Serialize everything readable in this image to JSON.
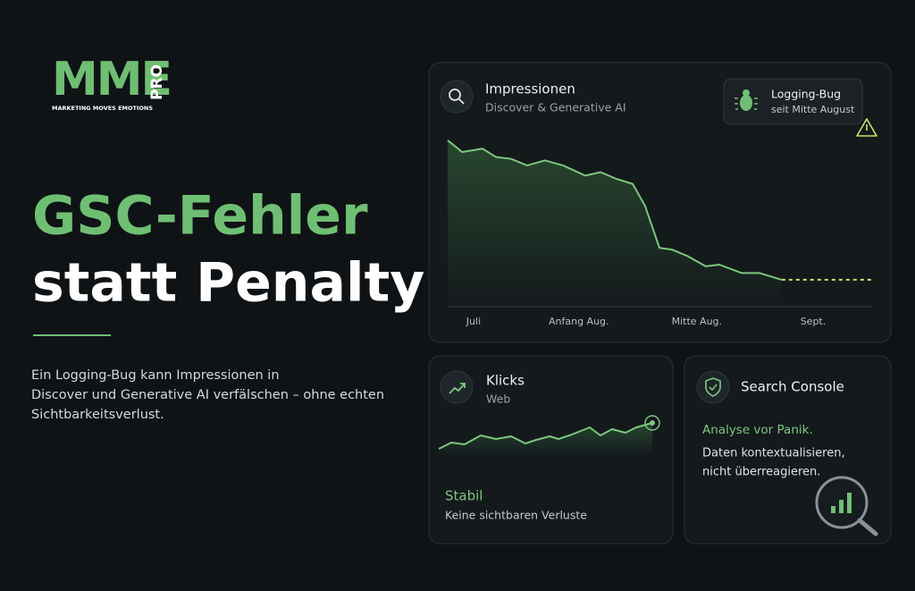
{
  "logo": {
    "mark": "MME",
    "pro": "PRO",
    "tagline": "MARKETING MOVES EMOTIONS"
  },
  "headline": {
    "line1": "GSC-Fehler",
    "line2": "statt Penalty"
  },
  "description_lines": [
    "Ein Logging-Bug kann Impressionen in",
    "Discover und Generative AI verfälschen – ohne echten",
    "Sichtbarkeitsverlust."
  ],
  "impressions_card": {
    "title": "Impressionen",
    "subtitle": "Discover & Generative AI",
    "badge": {
      "title": "Logging-Bug",
      "subtitle": "seit Mitte August"
    }
  },
  "clicks_card": {
    "title": "Klicks",
    "subtitle": "Web",
    "status": "Stabil",
    "note": "Keine sichtbaren Verluste"
  },
  "console_card": {
    "title": "Search Console",
    "highlight": "Analyse vor Panik.",
    "lines": [
      "Daten kontextualisieren,",
      "nicht überreagieren."
    ]
  },
  "chart_data": [
    {
      "type": "line",
      "xlim": [
        0,
        100
      ],
      "ylim": [
        0,
        100
      ],
      "xticks": [
        {
          "value": 6.1,
          "label": "Juli"
        },
        {
          "value": 30.9,
          "label": "Anfang Aug."
        },
        {
          "value": 58.7,
          "label": "Mitte Aug."
        },
        {
          "value": 86.1,
          "label": "Sept."
        }
      ],
      "series": [
        {
          "color": "#7bc77e",
          "x": [
            0,
            3.4,
            8.2,
            11.4,
            14.9,
            18.7,
            22.9,
            27.2,
            32.4,
            36,
            39.8,
            43.6,
            46.5,
            49.9,
            52.8,
            56.6,
            60.8,
            64,
            69.3,
            73.5,
            78.7
          ],
          "values": [
            99,
            92,
            94,
            89,
            88,
            84,
            87,
            84,
            78,
            80,
            76,
            73,
            60,
            35,
            34,
            30,
            24,
            25,
            20,
            20,
            16
          ]
        },
        {
          "color": "#c8e66a",
          "dashed": true,
          "x": [
            78.7,
            100
          ],
          "values": [
            16,
            16
          ]
        }
      ]
    },
    {
      "type": "line",
      "xlim": [
        0,
        100
      ],
      "ylim": [
        0,
        100
      ],
      "series": [
        {
          "color": "#7bc77e",
          "x": [
            0,
            5.9,
            12.1,
            19.7,
            26.8,
            33.9,
            40.6,
            45.6,
            51.9,
            56.1,
            62.3,
            70.7,
            75.7,
            81.2,
            87.4,
            92.5,
            100
          ],
          "values": [
            16,
            30,
            26,
            46,
            38,
            44,
            28,
            36,
            44,
            38,
            48,
            64,
            46,
            60,
            52,
            64,
            74
          ]
        }
      ]
    }
  ]
}
